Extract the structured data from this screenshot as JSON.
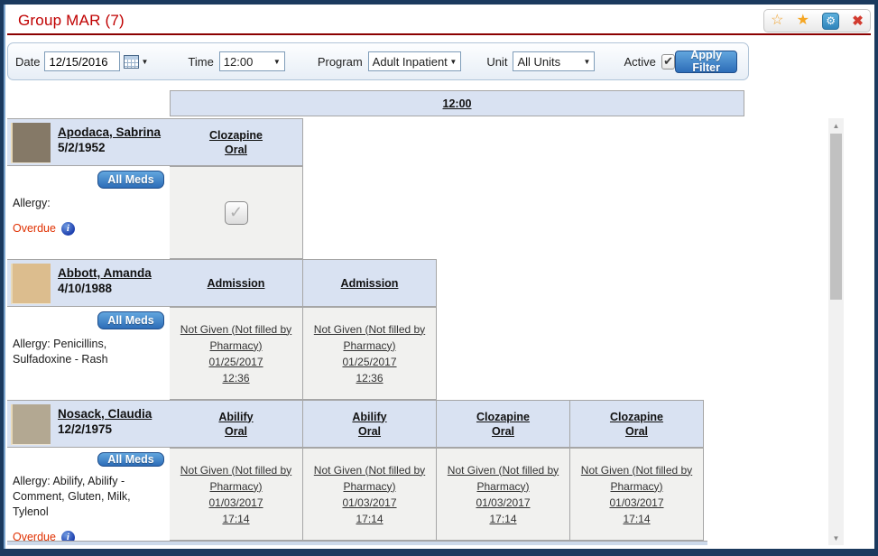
{
  "window": {
    "title": "Group MAR (7)",
    "titlebar_icons": [
      "star-outline-icon",
      "star-filled-icon",
      "settings-icon",
      "close-icon"
    ]
  },
  "colors": {
    "title_red": "#c00000",
    "rule_dark_red": "#8b0000",
    "header_light_blue": "#d9e2f2",
    "cell_gray": "#f1f1ef",
    "grid_border": "#a6a6a6",
    "button_blue": "#2d6db8",
    "overdue_red": "#e03000",
    "frame_navy": "#1b3a5e"
  },
  "filter": {
    "date_label": "Date",
    "date_value": "12/15/2016",
    "time_label": "Time",
    "time_value": "12:00",
    "program_label": "Program",
    "program_value": "Adult Inpatient",
    "unit_label": "Unit",
    "unit_value": "All Units",
    "active_label": "Active",
    "active_checked": true,
    "check_glyph": "✔",
    "caret_glyph": "▼",
    "apply_label": "Apply Filter"
  },
  "icons": {
    "star_outline": "☆",
    "star_filled": "★",
    "gear": "⚙",
    "close": "✖",
    "up_arrow": "▲",
    "down_arrow": "▼",
    "check": "✓"
  },
  "grid": {
    "time_header": "12:00",
    "all_meds_label": "All Meds",
    "patients": [
      {
        "name": "Apodaca, Sabrina",
        "dob": "5/2/1952",
        "photo_color": "#857967",
        "allergy": "Allergy:",
        "overdue": "Overdue",
        "meds": [
          {
            "name": "Clozapine",
            "route": "Oral",
            "cell_type": "checkbox",
            "checked": true
          }
        ]
      },
      {
        "name": "Abbott, Amanda",
        "dob": "4/10/1988",
        "photo_color": "#dcbd8e",
        "allergy": "Allergy: Penicillins, Sulfadoxine - Rash",
        "overdue": null,
        "meds": [
          {
            "name": "Admission",
            "route": "",
            "cell_type": "link",
            "status": "Not Given (Not filled by Pharmacy)",
            "date": "01/25/2017",
            "time": "12:36"
          },
          {
            "name": "Admission",
            "route": "",
            "cell_type": "link",
            "status": "Not Given (Not filled by Pharmacy)",
            "date": "01/25/2017",
            "time": "12:36"
          }
        ]
      },
      {
        "name": "Nosack, Claudia",
        "dob": "12/2/1975",
        "photo_color": "#b3a892",
        "allergy": "Allergy: Abilify, Abilify - Comment, Gluten, Milk, Tylenol",
        "overdue": "Overdue",
        "meds": [
          {
            "name": "Abilify",
            "route": "Oral",
            "cell_type": "link",
            "status": "Not Given (Not filled by Pharmacy)",
            "date": "01/03/2017",
            "time": "17:14"
          },
          {
            "name": "Abilify",
            "route": "Oral",
            "cell_type": "link",
            "status": "Not Given (Not filled by Pharmacy)",
            "date": "01/03/2017",
            "time": "17:14"
          },
          {
            "name": "Clozapine",
            "route": "Oral",
            "cell_type": "link",
            "status": "Not Given (Not filled by Pharmacy)",
            "date": "01/03/2017",
            "time": "17:14"
          },
          {
            "name": "Clozapine",
            "route": "Oral",
            "cell_type": "link",
            "status": "Not Given (Not filled by Pharmacy)",
            "date": "01/03/2017",
            "time": "17:14"
          }
        ]
      }
    ]
  }
}
